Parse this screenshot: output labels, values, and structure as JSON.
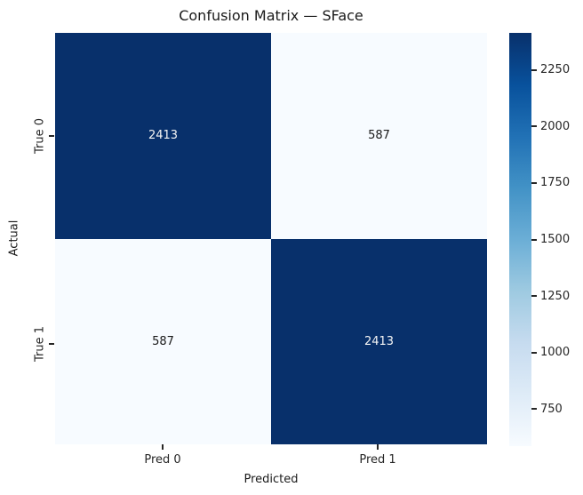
{
  "title": "Confusion Matrix — SFace",
  "chart_data": {
    "type": "heatmap",
    "title": "Confusion Matrix — SFace",
    "xlabel": "Predicted",
    "ylabel": "Actual",
    "x_tick_labels": [
      "Pred 0",
      "Pred 1"
    ],
    "y_tick_labels": [
      "True 0",
      "True 1"
    ],
    "matrix": [
      [
        2413,
        587
      ],
      [
        587,
        2413
      ]
    ],
    "vmin": 587,
    "vmax": 2413,
    "colorbar_ticks": [
      2250,
      2000,
      1750,
      1500,
      1250,
      1000,
      750
    ],
    "colormap": "Blues",
    "colormap_stops": [
      {
        "pos": 0.0,
        "color": "#f7fbff"
      },
      {
        "pos": 0.125,
        "color": "#deebf7"
      },
      {
        "pos": 0.25,
        "color": "#c6dbef"
      },
      {
        "pos": 0.375,
        "color": "#9ecae1"
      },
      {
        "pos": 0.5,
        "color": "#6baed6"
      },
      {
        "pos": 0.625,
        "color": "#4292c6"
      },
      {
        "pos": 0.75,
        "color": "#2171b5"
      },
      {
        "pos": 0.875,
        "color": "#08519c"
      },
      {
        "pos": 1.0,
        "color": "#08306b"
      }
    ],
    "colors": {
      "dark_cell": "#08306b",
      "light_cell": "#f7fbff",
      "annot_on_dark": "#f5f5f5",
      "annot_on_light": "#1a1a1a"
    },
    "legend_position": "right-colorbar",
    "grid": false
  }
}
